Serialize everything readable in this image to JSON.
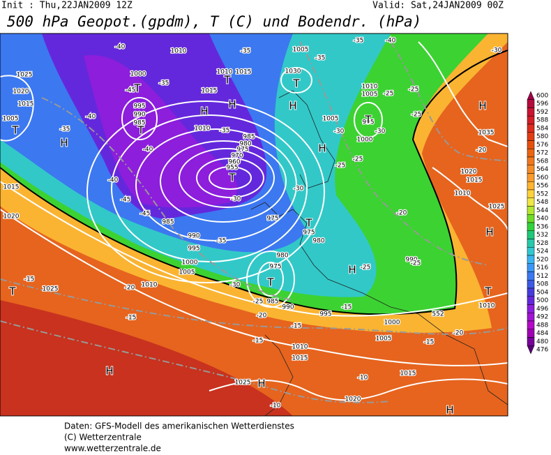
{
  "header": {
    "init": "Init : Thu,22JAN2009 12Z",
    "valid": "Valid: Sat,24JAN2009 00Z",
    "title": "500 hPa Geopot.(gpdm), T (C) und Bodendr. (hPa)"
  },
  "map": {
    "pressure_centers": [
      "T",
      "H",
      "T",
      "T",
      "H",
      "H",
      "T",
      "T",
      "H",
      "T",
      "H",
      "T",
      "T",
      "H",
      "T",
      "H",
      "H",
      "T",
      "T",
      "H",
      "H",
      "H"
    ],
    "isobar_labels": [
      "1025",
      "1020",
      "1015",
      "1005",
      "1010",
      "1005",
      "1000",
      "1015",
      "1010",
      "1015",
      "1030",
      "995",
      "990",
      "985",
      "1010",
      "985",
      "980",
      "975",
      "970",
      "960",
      "955",
      "1015",
      "1020",
      "985",
      "990",
      "995",
      "1000",
      "1005",
      "1010",
      "975",
      "975",
      "980",
      "980",
      "975",
      "985",
      "990",
      "995",
      "1000",
      "1005",
      "1010",
      "1015",
      "1025",
      "1020",
      "1015",
      "1010",
      "1005",
      "1005",
      "995",
      "1000",
      "1035",
      "1020",
      "1015",
      "1010",
      "1025",
      "1010",
      "1025",
      "990",
      "552"
    ],
    "temperature_labels": [
      "-40",
      "-35",
      "-35",
      "-35",
      "-40",
      "-30",
      "-35",
      "-45",
      "-40",
      "-35",
      "-40",
      "-35",
      "-40",
      "-45",
      "-45",
      "-30",
      "-35",
      "-30",
      "-25",
      "-25",
      "-30",
      "-30",
      "-25",
      "-25",
      "-20",
      "-20",
      "-25",
      "-25",
      "-30",
      "-25",
      "-20",
      "-20",
      "-15",
      "-15",
      "-15",
      "-15",
      "-15",
      "-20",
      "-10",
      "-10",
      "-15",
      "-25"
    ]
  },
  "colorbar": {
    "labels": [
      "600",
      "596",
      "592",
      "588",
      "584",
      "580",
      "576",
      "572",
      "568",
      "564",
      "560",
      "556",
      "552",
      "548",
      "544",
      "540",
      "536",
      "532",
      "528",
      "524",
      "520",
      "516",
      "512",
      "508",
      "504",
      "500",
      "496",
      "492",
      "488",
      "484",
      "480",
      "476"
    ],
    "colors": [
      "#a0004a",
      "#b40a3c",
      "#c81432",
      "#d21e28",
      "#dc2d1e",
      "#e13c14",
      "#e6500f",
      "#eb640f",
      "#f0781e",
      "#f58c28",
      "#fa9b2d",
      "#ffb432",
      "#ffd23c",
      "#f0e646",
      "#b4e632",
      "#6edc28",
      "#32d23c",
      "#1ec878",
      "#28c8aa",
      "#32c8d2",
      "#3cb4f0",
      "#3c96f5",
      "#3c78f0",
      "#3c5ae6",
      "#463cdc",
      "#6428dc",
      "#8c1edc",
      "#a014d2",
      "#b40ac8",
      "#a000b4",
      "#78009b",
      "#5a0078"
    ]
  },
  "footer": {
    "lines": [
      "Daten: GFS-Modell des amerikanischen Wetterdienstes",
      "(C) Wetterzentrale",
      "www.wetterzentrale.de"
    ]
  }
}
